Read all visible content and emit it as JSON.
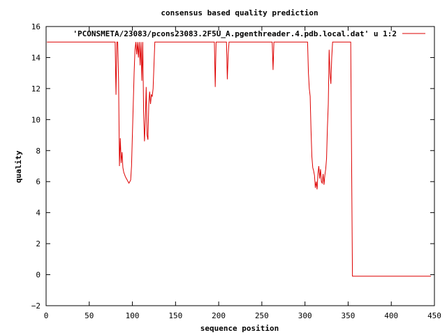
{
  "chart_data": {
    "type": "line",
    "title": "consensus based quality prediction",
    "xlabel": "sequence position",
    "ylabel": "quality",
    "xlim": [
      0,
      450
    ],
    "ylim": [
      -2,
      16
    ],
    "xticks": [
      0,
      50,
      100,
      150,
      200,
      250,
      300,
      350,
      400,
      450
    ],
    "yticks": [
      -2,
      0,
      2,
      4,
      6,
      8,
      10,
      12,
      14,
      16
    ],
    "grid": false,
    "legend_position": "top-right",
    "series": [
      {
        "name": "'PCONSMETA/23083/pcons23083.2F5U_A.pgenthreader.4.pdb.local.dat' u 1:2",
        "color": "#dd0000",
        "x": [
          1,
          80,
          81,
          82,
          83,
          84,
          85,
          86,
          87,
          88,
          89,
          90,
          92,
          94,
          96,
          98,
          99,
          100,
          101,
          102,
          103,
          104,
          105,
          106,
          107,
          108,
          109,
          110,
          111,
          112,
          113,
          114,
          115,
          116,
          117,
          118,
          119,
          120,
          121,
          122,
          123,
          124,
          125,
          126,
          128,
          195,
          196,
          197,
          198,
          209,
          210,
          211,
          212,
          262,
          263,
          264,
          265,
          303,
          304,
          305,
          306,
          307,
          308,
          309,
          310,
          311,
          312,
          313,
          314,
          315,
          316,
          317,
          318,
          319,
          320,
          321,
          322,
          323,
          324,
          325,
          326,
          327,
          328,
          329,
          330,
          331,
          332,
          333,
          334,
          335,
          353,
          354,
          355,
          446
        ],
        "y": [
          15,
          15,
          11.6,
          15,
          15,
          12.5,
          7.0,
          8.8,
          7.2,
          7.9,
          6.9,
          6.6,
          6.3,
          6.1,
          5.9,
          6.1,
          7.0,
          9.0,
          11.0,
          13.0,
          14.5,
          15,
          14.2,
          15,
          14.0,
          15,
          13.5,
          15,
          12.5,
          15,
          10.5,
          8.6,
          10.0,
          12.1,
          9.0,
          8.7,
          11.0,
          11.8,
          11.0,
          11.6,
          11.5,
          12.0,
          13.5,
          15,
          15,
          15,
          12.1,
          15,
          15,
          15,
          12.6,
          14.2,
          15,
          15,
          13.2,
          15,
          15,
          15,
          13.0,
          12.0,
          11.5,
          9.3,
          7.6,
          6.9,
          6.7,
          6.4,
          5.6,
          6.0,
          5.5,
          6.5,
          7.0,
          6.2,
          6.8,
          6.0,
          5.9,
          6.5,
          5.8,
          6.4,
          6.8,
          7.5,
          9.5,
          11.0,
          14.5,
          13.0,
          12.3,
          14.0,
          15,
          15,
          15,
          15,
          15,
          7.4,
          -0.1,
          -0.1
        ]
      }
    ]
  }
}
